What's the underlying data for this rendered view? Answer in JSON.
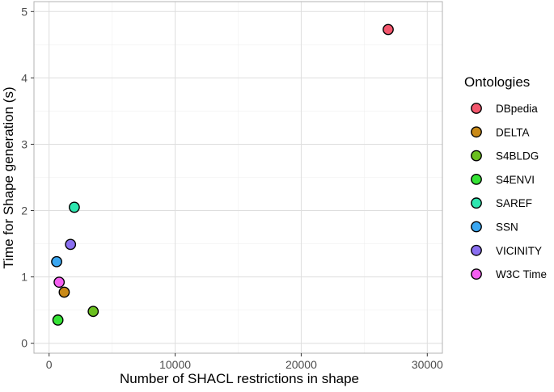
{
  "chart_data": {
    "type": "scatter",
    "title": "",
    "xlabel": "Number of SHACL restrictions in shape",
    "ylabel": "Time for Shape generation (s)",
    "xlim": [
      -1200,
      31200
    ],
    "ylim": [
      -0.15,
      5.15
    ],
    "x_ticks": [
      0,
      10000,
      20000,
      30000
    ],
    "y_ticks": [
      0,
      1,
      2,
      3,
      4,
      5
    ],
    "grid": true,
    "legend": {
      "title": "Ontologies",
      "placement": "right"
    },
    "series": [
      {
        "name": "DBpedia",
        "color": "#f3576d",
        "x": 26900,
        "y": 4.73
      },
      {
        "name": "DELTA",
        "color": "#c98a18",
        "x": 1200,
        "y": 0.77
      },
      {
        "name": "S4BLDG",
        "color": "#6abf1f",
        "x": 3500,
        "y": 0.48
      },
      {
        "name": "S4ENVI",
        "color": "#36e336",
        "x": 700,
        "y": 0.35
      },
      {
        "name": "SAREF",
        "color": "#2ee7b0",
        "x": 2000,
        "y": 2.05
      },
      {
        "name": "SSN",
        "color": "#3aa7f2",
        "x": 600,
        "y": 1.23
      },
      {
        "name": "VICINITY",
        "color": "#8a6ff0",
        "x": 1700,
        "y": 1.49
      },
      {
        "name": "W3C Time",
        "color": "#f45ef0",
        "x": 800,
        "y": 0.92
      }
    ]
  }
}
